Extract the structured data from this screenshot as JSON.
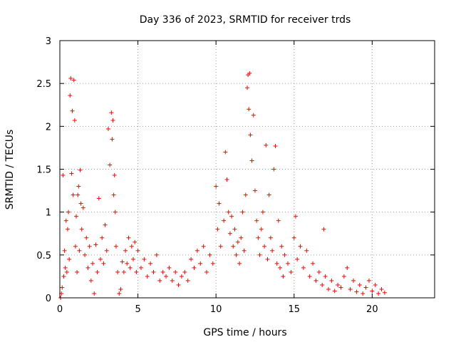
{
  "chart_data": {
    "type": "scatter",
    "title": "Day 336 of 2023, SRMTID for receiver trds",
    "xlabel": "GPS time / hours",
    "ylabel": "SRMTID / TECUs",
    "xlim": [
      0,
      24
    ],
    "ylim": [
      0,
      3
    ],
    "xticks": [
      0,
      5,
      10,
      15,
      20
    ],
    "yticks": [
      0,
      0.5,
      1,
      1.5,
      2,
      2.5,
      3
    ],
    "xtick_labels": [
      "0",
      "5",
      "10",
      "15",
      "20"
    ],
    "ytick_labels": [
      "0",
      "0.5",
      "1",
      "1.5",
      "2",
      "2.5",
      "3"
    ],
    "grid": true,
    "marker": "+",
    "color": "#ff0000",
    "series": [
      {
        "name": "SRMTID",
        "points": [
          [
            0.05,
            0.0
          ],
          [
            0.1,
            0.05
          ],
          [
            0.15,
            0.12
          ],
          [
            0.2,
            1.43
          ],
          [
            0.25,
            0.25
          ],
          [
            0.3,
            0.55
          ],
          [
            0.35,
            0.35
          ],
          [
            0.4,
            0.9
          ],
          [
            0.45,
            0.3
          ],
          [
            0.5,
            0.8
          ],
          [
            0.55,
            1.0
          ],
          [
            0.6,
            0.45
          ],
          [
            0.65,
            2.36
          ],
          [
            0.7,
            2.56
          ],
          [
            0.75,
            1.45
          ],
          [
            0.8,
            2.18
          ],
          [
            0.85,
            1.2
          ],
          [
            0.9,
            2.54
          ],
          [
            0.95,
            2.07
          ],
          [
            1.0,
            0.6
          ],
          [
            1.05,
            0.95
          ],
          [
            1.1,
            0.3
          ],
          [
            1.15,
            1.2
          ],
          [
            1.2,
            1.3
          ],
          [
            1.25,
            0.55
          ],
          [
            1.3,
            1.49
          ],
          [
            1.35,
            1.1
          ],
          [
            1.4,
            0.8
          ],
          [
            1.5,
            1.05
          ],
          [
            1.6,
            0.5
          ],
          [
            1.7,
            0.7
          ],
          [
            1.8,
            0.35
          ],
          [
            1.9,
            0.6
          ],
          [
            2.0,
            0.2
          ],
          [
            2.1,
            0.4
          ],
          [
            2.2,
            0.05
          ],
          [
            2.3,
            0.62
          ],
          [
            2.4,
            0.3
          ],
          [
            2.5,
            1.16
          ],
          [
            2.6,
            0.45
          ],
          [
            2.7,
            0.7
          ],
          [
            2.8,
            0.4
          ],
          [
            2.9,
            0.85
          ],
          [
            3.0,
            0.55
          ],
          [
            3.1,
            1.97
          ],
          [
            3.2,
            1.55
          ],
          [
            3.3,
            2.16
          ],
          [
            3.35,
            1.85
          ],
          [
            3.4,
            2.07
          ],
          [
            3.45,
            1.2
          ],
          [
            3.5,
            1.43
          ],
          [
            3.55,
            1.0
          ],
          [
            3.6,
            0.6
          ],
          [
            3.7,
            0.3
          ],
          [
            3.8,
            0.05
          ],
          [
            3.9,
            0.1
          ],
          [
            4.0,
            0.42
          ],
          [
            4.1,
            0.3
          ],
          [
            4.2,
            0.55
          ],
          [
            4.3,
            0.4
          ],
          [
            4.4,
            0.7
          ],
          [
            4.5,
            0.35
          ],
          [
            4.6,
            0.6
          ],
          [
            4.7,
            0.45
          ],
          [
            4.8,
            0.65
          ],
          [
            4.9,
            0.3
          ],
          [
            5.0,
            0.55
          ],
          [
            5.2,
            0.35
          ],
          [
            5.4,
            0.45
          ],
          [
            5.6,
            0.25
          ],
          [
            5.8,
            0.4
          ],
          [
            6.0,
            0.3
          ],
          [
            6.2,
            0.5
          ],
          [
            6.4,
            0.2
          ],
          [
            6.6,
            0.3
          ],
          [
            6.8,
            0.25
          ],
          [
            7.0,
            0.35
          ],
          [
            7.2,
            0.2
          ],
          [
            7.4,
            0.3
          ],
          [
            7.6,
            0.15
          ],
          [
            7.8,
            0.25
          ],
          [
            8.0,
            0.3
          ],
          [
            8.2,
            0.2
          ],
          [
            8.4,
            0.45
          ],
          [
            8.6,
            0.35
          ],
          [
            8.8,
            0.55
          ],
          [
            9.0,
            0.4
          ],
          [
            9.2,
            0.6
          ],
          [
            9.4,
            0.3
          ],
          [
            9.6,
            0.5
          ],
          [
            9.8,
            0.4
          ],
          [
            10.0,
            1.3
          ],
          [
            10.1,
            0.8
          ],
          [
            10.2,
            1.1
          ],
          [
            10.3,
            0.6
          ],
          [
            10.5,
            0.9
          ],
          [
            10.6,
            1.7
          ],
          [
            10.7,
            1.38
          ],
          [
            10.8,
            1.0
          ],
          [
            10.9,
            0.75
          ],
          [
            11.0,
            0.95
          ],
          [
            11.1,
            0.6
          ],
          [
            11.2,
            0.8
          ],
          [
            11.3,
            0.5
          ],
          [
            11.4,
            0.65
          ],
          [
            11.5,
            0.4
          ],
          [
            11.6,
            0.7
          ],
          [
            11.7,
            1.0
          ],
          [
            11.8,
            0.55
          ],
          [
            11.9,
            1.2
          ],
          [
            12.0,
            2.45
          ],
          [
            12.05,
            2.6
          ],
          [
            12.1,
            2.2
          ],
          [
            12.15,
            2.62
          ],
          [
            12.2,
            1.9
          ],
          [
            12.3,
            1.6
          ],
          [
            12.4,
            2.13
          ],
          [
            12.5,
            1.25
          ],
          [
            12.6,
            0.9
          ],
          [
            12.7,
            0.7
          ],
          [
            12.8,
            0.5
          ],
          [
            12.9,
            0.8
          ],
          [
            13.0,
            1.0
          ],
          [
            13.1,
            0.6
          ],
          [
            13.2,
            1.78
          ],
          [
            13.3,
            0.45
          ],
          [
            13.4,
            1.2
          ],
          [
            13.5,
            0.7
          ],
          [
            13.6,
            0.55
          ],
          [
            13.7,
            1.5
          ],
          [
            13.8,
            1.77
          ],
          [
            13.9,
            0.4
          ],
          [
            14.0,
            0.9
          ],
          [
            14.1,
            0.35
          ],
          [
            14.2,
            0.6
          ],
          [
            14.3,
            0.25
          ],
          [
            14.4,
            0.5
          ],
          [
            14.6,
            0.4
          ],
          [
            14.8,
            0.3
          ],
          [
            15.0,
            0.7
          ],
          [
            15.1,
            0.95
          ],
          [
            15.2,
            0.45
          ],
          [
            15.4,
            0.6
          ],
          [
            15.6,
            0.35
          ],
          [
            15.8,
            0.55
          ],
          [
            16.0,
            0.25
          ],
          [
            16.2,
            0.4
          ],
          [
            16.4,
            0.2
          ],
          [
            16.6,
            0.3
          ],
          [
            16.8,
            0.15
          ],
          [
            16.9,
            0.8
          ],
          [
            17.0,
            0.25
          ],
          [
            17.2,
            0.1
          ],
          [
            17.4,
            0.2
          ],
          [
            17.6,
            0.08
          ],
          [
            17.8,
            0.15
          ],
          [
            18.0,
            0.12
          ],
          [
            18.2,
            0.25
          ],
          [
            18.4,
            0.35
          ],
          [
            18.6,
            0.1
          ],
          [
            18.8,
            0.2
          ],
          [
            19.0,
            0.07
          ],
          [
            19.2,
            0.15
          ],
          [
            19.4,
            0.05
          ],
          [
            19.6,
            0.12
          ],
          [
            19.8,
            0.2
          ],
          [
            20.0,
            0.08
          ],
          [
            20.2,
            0.15
          ],
          [
            20.4,
            0.05
          ],
          [
            20.6,
            0.1
          ],
          [
            20.8,
            0.06
          ]
        ]
      }
    ]
  }
}
